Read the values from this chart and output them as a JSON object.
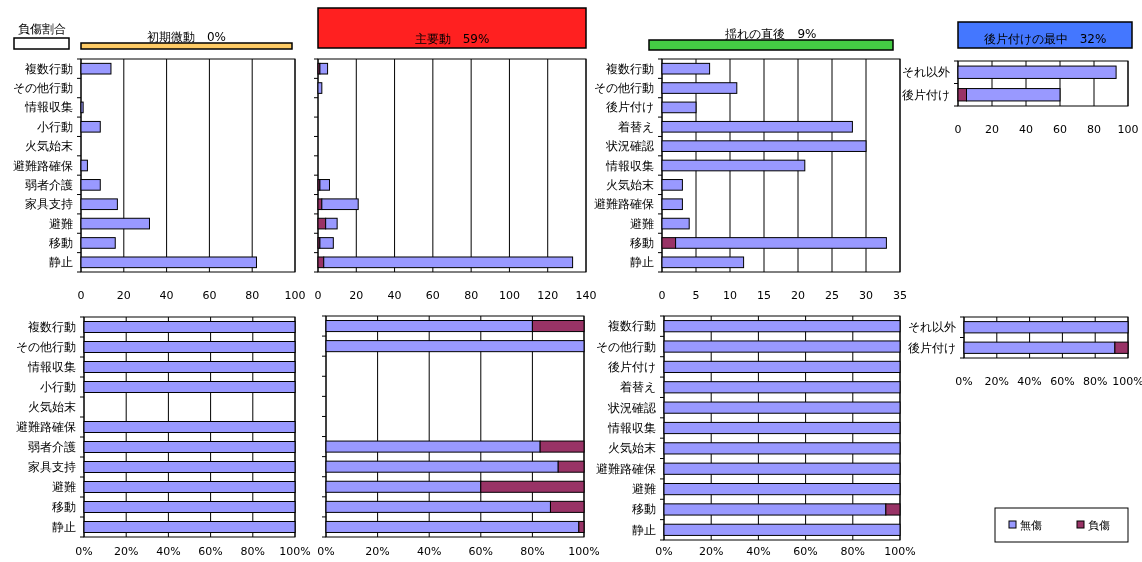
{
  "chart_data": [
    {
      "type": "bar",
      "orientation": "horizontal",
      "stacked": true,
      "title": "初期微動　0%",
      "annotations": [
        "負傷割合"
      ],
      "categories": [
        "複数行動",
        "その他行動",
        "情報収集",
        "小行動",
        "火気始末",
        "避難路確保",
        "弱者介護",
        "家具支持",
        "避難",
        "移動",
        "静止"
      ],
      "series": [
        {
          "color": "#993366",
          "values": [
            0,
            0,
            0,
            0,
            0,
            0,
            0,
            0,
            0,
            0,
            0
          ]
        },
        {
          "color": "#9999ff",
          "values": [
            14,
            0,
            1,
            9,
            0,
            3,
            9,
            17,
            32,
            16,
            82
          ]
        }
      ],
      "xlim": [
        0,
        100
      ],
      "xticks": [
        0,
        20,
        40,
        60,
        80,
        100
      ],
      "grid": "x"
    },
    {
      "type": "bar",
      "orientation": "horizontal",
      "stacked": true,
      "title": "主要動　59%",
      "categories": [
        null,
        null,
        null,
        null,
        null,
        null,
        null,
        null,
        null,
        null,
        null
      ],
      "series": [
        {
          "color": "#993366",
          "values": [
            1,
            0,
            0,
            0,
            0,
            0,
            1,
            2,
            4,
            1,
            3
          ]
        },
        {
          "color": "#9999ff",
          "values": [
            4,
            2,
            0,
            0,
            0,
            0,
            5,
            19,
            6,
            7,
            130
          ]
        }
      ],
      "xlim": [
        0,
        140
      ],
      "xticks": [
        0,
        20,
        40,
        60,
        80,
        100,
        120,
        140
      ],
      "grid": "x"
    },
    {
      "type": "bar",
      "orientation": "horizontal",
      "stacked": true,
      "title": "揺れの直後　9%",
      "categories": [
        "複数行動",
        "その他行動",
        "後片付け",
        "着替え",
        "状況確認",
        "情報収集",
        "火気始末",
        "避難路確保",
        "避難",
        "移動",
        "静止"
      ],
      "series": [
        {
          "color": "#993366",
          "values": [
            0,
            0,
            0,
            0,
            0,
            0,
            0,
            0,
            0,
            2,
            0
          ]
        },
        {
          "color": "#9999ff",
          "values": [
            7,
            11,
            5,
            28,
            30,
            21,
            3,
            3,
            4,
            31,
            12
          ]
        }
      ],
      "xlim": [
        0,
        35
      ],
      "xticks": [
        0,
        5,
        10,
        15,
        20,
        25,
        30,
        35
      ],
      "grid": "x"
    },
    {
      "type": "bar",
      "orientation": "horizontal",
      "stacked": true,
      "title": "後片付けの最中　32%",
      "categories": [
        "それ以外",
        "後片付け"
      ],
      "series": [
        {
          "color": "#993366",
          "values": [
            0,
            5
          ]
        },
        {
          "color": "#9999ff",
          "values": [
            93,
            55
          ]
        }
      ],
      "xlim": [
        0,
        100
      ],
      "xticks": [
        0,
        20,
        40,
        60,
        80,
        100
      ],
      "grid": "x"
    },
    {
      "type": "bar",
      "orientation": "horizontal",
      "stacked": true,
      "categories": [
        "複数行動",
        "その他行動",
        "情報収集",
        "小行動",
        "火気始末",
        "避難路確保",
        "弱者介護",
        "家具支持",
        "避難",
        "移動",
        "静止"
      ],
      "series": [
        {
          "color": "#9999ff",
          "values": [
            100,
            100,
            100,
            100,
            null,
            100,
            100,
            100,
            100,
            100,
            100
          ]
        },
        {
          "color": "#993366",
          "values": [
            0,
            0,
            0,
            0,
            null,
            0,
            0,
            0,
            0,
            0,
            0
          ]
        }
      ],
      "xlim": [
        0,
        100
      ],
      "xticks": [
        {
          "value": 0,
          "label": "0%"
        },
        {
          "value": 20,
          "label": "20%"
        },
        {
          "value": 40,
          "label": "40%"
        },
        {
          "value": 60,
          "label": "60%"
        },
        {
          "value": 80,
          "label": "80%"
        },
        {
          "value": 100,
          "label": "100%"
        }
      ],
      "grid": "x"
    },
    {
      "type": "bar",
      "orientation": "horizontal",
      "stacked": true,
      "categories": [
        null,
        null,
        null,
        null,
        null,
        null,
        null,
        null,
        null,
        null,
        null
      ],
      "series": [
        {
          "color": "#9999ff",
          "values": [
            80,
            100,
            null,
            null,
            null,
            null,
            83,
            90,
            60,
            87,
            98
          ]
        },
        {
          "color": "#993366",
          "values": [
            20,
            0,
            null,
            null,
            null,
            null,
            17,
            10,
            40,
            13,
            2
          ]
        }
      ],
      "xlim": [
        0,
        100
      ],
      "xticks": [
        {
          "value": 0,
          "label": "0%"
        },
        {
          "value": 20,
          "label": "20%"
        },
        {
          "value": 40,
          "label": "40%"
        },
        {
          "value": 60,
          "label": "60%"
        },
        {
          "value": 80,
          "label": "80%"
        },
        {
          "value": 100,
          "label": "100%"
        }
      ],
      "grid": "x"
    },
    {
      "type": "bar",
      "orientation": "horizontal",
      "stacked": true,
      "categories": [
        "複数行動",
        "その他行動",
        "後片付け",
        "着替え",
        "状況確認",
        "情報収集",
        "火気始末",
        "避難路確保",
        "避難",
        "移動",
        "静止"
      ],
      "series": [
        {
          "color": "#9999ff",
          "values": [
            100,
            100,
            100,
            100,
            100,
            100,
            100,
            100,
            100,
            94,
            100
          ]
        },
        {
          "color": "#993366",
          "values": [
            0,
            0,
            0,
            0,
            0,
            0,
            0,
            0,
            0,
            6,
            0
          ]
        }
      ],
      "xlim": [
        0,
        100
      ],
      "xticks": [
        {
          "value": 0,
          "label": "0%"
        },
        {
          "value": 20,
          "label": "20%"
        },
        {
          "value": 40,
          "label": "40%"
        },
        {
          "value": 60,
          "label": "60%"
        },
        {
          "value": 80,
          "label": "80%"
        },
        {
          "value": 100,
          "label": "100%"
        }
      ],
      "grid": "x"
    },
    {
      "type": "bar",
      "orientation": "horizontal",
      "stacked": true,
      "legend": "bottom",
      "categories": [
        "それ以外",
        "後片付け"
      ],
      "series": [
        {
          "name": "無傷",
          "color": "#9999ff",
          "values": [
            100,
            92
          ]
        },
        {
          "name": "負傷",
          "color": "#993366",
          "values": [
            0,
            8
          ]
        }
      ],
      "xlim": [
        0,
        100
      ],
      "xticks": [
        {
          "value": 0,
          "label": "0%"
        },
        {
          "value": 20,
          "label": "20%"
        },
        {
          "value": 40,
          "label": "40%"
        },
        {
          "value": 60,
          "label": "60%"
        },
        {
          "value": 80,
          "label": "80%"
        },
        {
          "value": 100,
          "label": "100%"
        }
      ],
      "grid": "x"
    }
  ]
}
